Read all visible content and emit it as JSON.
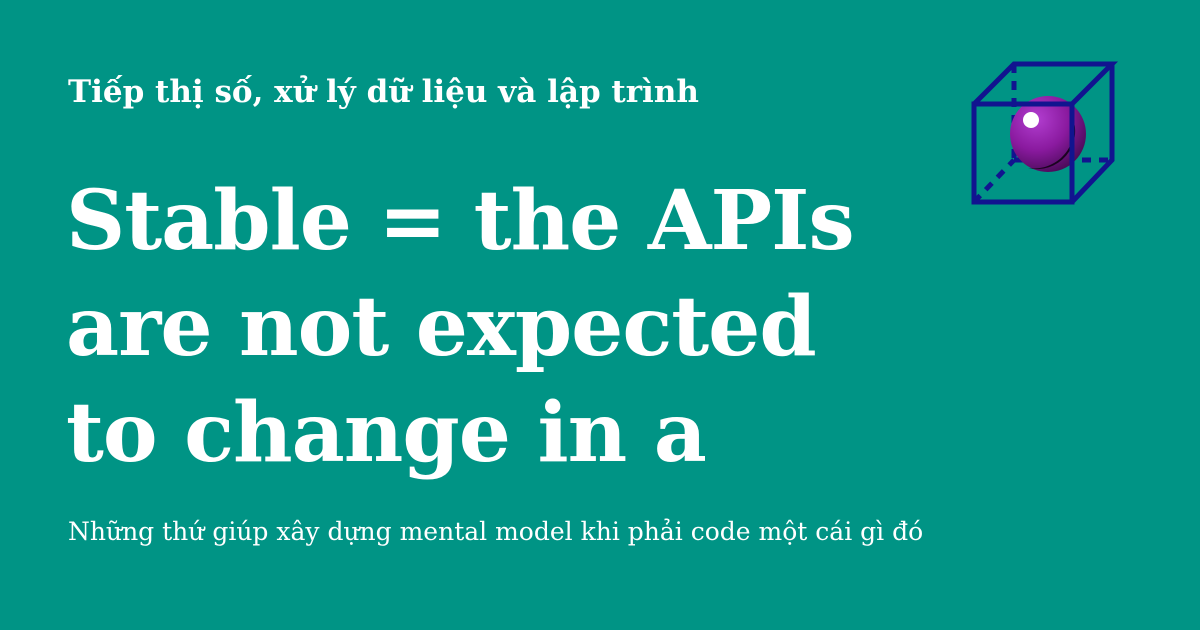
{
  "site": {
    "name": "Tiếp thị số, xử lý dữ liệu và lập trình"
  },
  "post": {
    "title_lines": [
      "Stable = the APIs",
      "are not expected",
      "to change in a"
    ],
    "description": "Những thứ giúp xây dựng mental model khi phải code một cái gì đó"
  },
  "logo": {
    "icon": "cube-sphere-logo-icon",
    "cube_color": "#11148f",
    "sphere_color": "#8a1a9f"
  },
  "colors": {
    "background": "#009485",
    "text": "#ffffff"
  }
}
